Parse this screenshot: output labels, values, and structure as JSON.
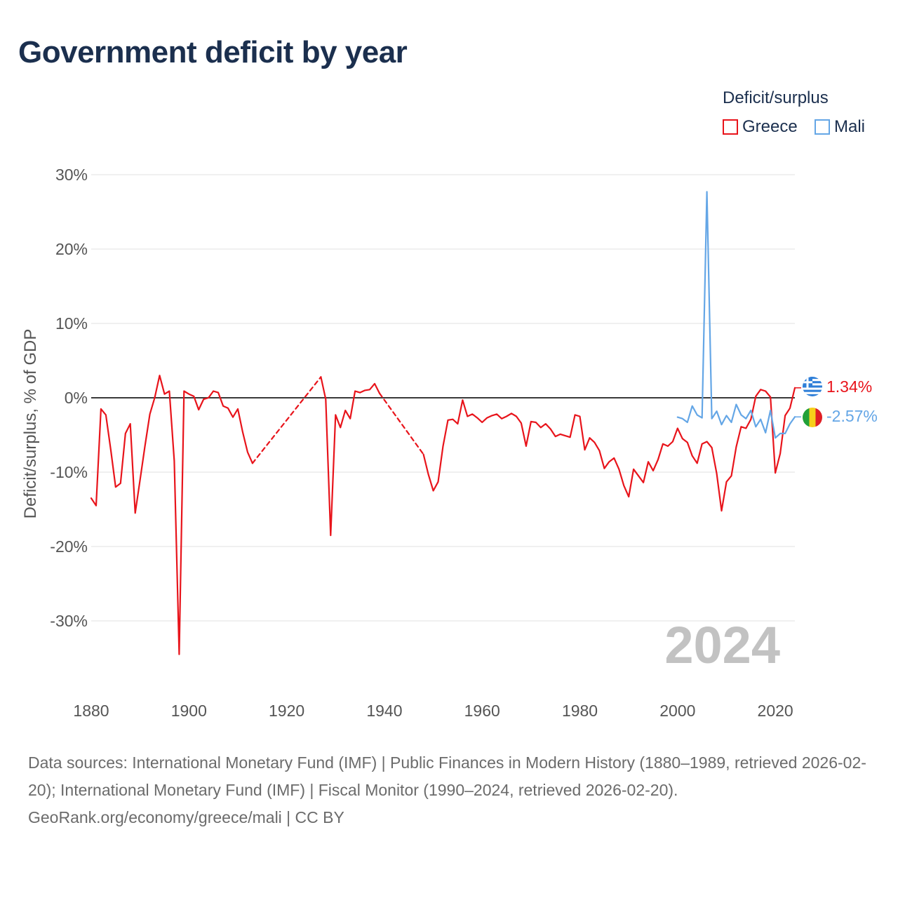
{
  "title": "Government deficit by year",
  "legend": {
    "title": "Deficit/surplus",
    "items": [
      {
        "name": "Greece",
        "color": "#e8141b"
      },
      {
        "name": "Mali",
        "color": "#64a6e6"
      }
    ]
  },
  "footer": {
    "sources": "Data sources: International Monetary Fund (IMF) | Public Finances in Modern History (1880–1989, retrieved 2026-02-20); International Monetary Fund (IMF) | Fiscal Monitor (1990–2024, retrieved 2026-02-20).",
    "credit": "GeoRank.org/economy/greece/mali | CC BY"
  },
  "chart_data": {
    "type": "line",
    "title": "Government deficit by year",
    "ylabel": "Deficit/surplus, % of GDP",
    "xlabel": "",
    "xlim": [
      1880,
      2024
    ],
    "ylim": [
      -37,
      30
    ],
    "x_ticks": [
      "1880",
      "1900",
      "1920",
      "1940",
      "1960",
      "1980",
      "2000",
      "2020"
    ],
    "x_tick_values": [
      1880,
      1900,
      1920,
      1940,
      1960,
      1980,
      2000,
      2020
    ],
    "y_ticks": [
      "30%",
      "20%",
      "10%",
      "0%",
      "-10%",
      "-20%",
      "-30%"
    ],
    "y_tick_values": [
      30,
      20,
      10,
      0,
      -10,
      -20,
      -30
    ],
    "watermark_year": "2024",
    "series": [
      {
        "name": "Greece",
        "color": "#e8141b",
        "end_label": "1.34%",
        "flag": "greece-flag-icon",
        "segments": [
          {
            "style": "solid",
            "points": [
              [
                1880,
                -13.5
              ],
              [
                1881,
                -14.5
              ],
              [
                1882,
                -1.5
              ],
              [
                1883,
                -2.3
              ],
              [
                1884,
                -7
              ],
              [
                1885,
                -12
              ],
              [
                1886,
                -11.5
              ],
              [
                1887,
                -4.8
              ],
              [
                1888,
                -3.5
              ],
              [
                1889,
                -15.5
              ],
              [
                1890,
                -11
              ],
              [
                1891,
                -6.5
              ],
              [
                1892,
                -2.2
              ],
              [
                1893,
                0
              ],
              [
                1894,
                3
              ],
              [
                1895,
                0.5
              ],
              [
                1896,
                0.9
              ],
              [
                1897,
                -8.5
              ],
              [
                1898,
                -34.5
              ],
              [
                1899,
                0.9
              ],
              [
                1900,
                0.5
              ],
              [
                1901,
                0.2
              ],
              [
                1902,
                -1.6
              ],
              [
                1903,
                -0.2
              ],
              [
                1904,
                0
              ],
              [
                1905,
                0.9
              ],
              [
                1906,
                0.7
              ],
              [
                1907,
                -1.1
              ],
              [
                1908,
                -1.4
              ],
              [
                1909,
                -2.6
              ],
              [
                1910,
                -1.5
              ],
              [
                1911,
                -4.6
              ],
              [
                1912,
                -7.3
              ],
              [
                1913,
                -8.8
              ]
            ]
          },
          {
            "style": "dashed",
            "points": [
              [
                1913,
                -8.8
              ],
              [
                1927,
                2.8
              ]
            ]
          },
          {
            "style": "solid",
            "points": [
              [
                1927,
                2.8
              ],
              [
                1928,
                -0.2
              ],
              [
                1929,
                -18.5
              ],
              [
                1930,
                -2.3
              ],
              [
                1931,
                -4
              ],
              [
                1932,
                -1.7
              ],
              [
                1933,
                -2.8
              ],
              [
                1934,
                0.9
              ],
              [
                1935,
                0.7
              ],
              [
                1936,
                1
              ],
              [
                1937,
                1.1
              ],
              [
                1938,
                1.9
              ],
              [
                1939,
                0.6
              ]
            ]
          },
          {
            "style": "dashed",
            "points": [
              [
                1939,
                0.6
              ],
              [
                1948,
                -7.6
              ]
            ]
          },
          {
            "style": "solid",
            "points": [
              [
                1948,
                -7.6
              ],
              [
                1949,
                -10.3
              ],
              [
                1950,
                -12.5
              ],
              [
                1951,
                -11.3
              ],
              [
                1952,
                -6.5
              ],
              [
                1953,
                -3
              ],
              [
                1954,
                -2.9
              ],
              [
                1955,
                -3.5
              ],
              [
                1956,
                -0.3
              ],
              [
                1957,
                -2.5
              ],
              [
                1958,
                -2.2
              ],
              [
                1959,
                -2.7
              ],
              [
                1960,
                -3.3
              ],
              [
                1961,
                -2.7
              ],
              [
                1962,
                -2.4
              ],
              [
                1963,
                -2.2
              ],
              [
                1964,
                -2.8
              ],
              [
                1965,
                -2.5
              ],
              [
                1966,
                -2.1
              ],
              [
                1967,
                -2.5
              ],
              [
                1968,
                -3.4
              ],
              [
                1969,
                -6.5
              ],
              [
                1970,
                -3.2
              ],
              [
                1971,
                -3.3
              ],
              [
                1972,
                -4
              ],
              [
                1973,
                -3.5
              ],
              [
                1974,
                -4.2
              ],
              [
                1975,
                -5.2
              ],
              [
                1976,
                -4.9
              ],
              [
                1977,
                -5.1
              ],
              [
                1978,
                -5.3
              ],
              [
                1979,
                -2.3
              ],
              [
                1980,
                -2.5
              ],
              [
                1981,
                -7
              ],
              [
                1982,
                -5.4
              ],
              [
                1983,
                -6
              ],
              [
                1984,
                -7.1
              ],
              [
                1985,
                -9.5
              ],
              [
                1986,
                -8.6
              ],
              [
                1987,
                -8.1
              ],
              [
                1988,
                -9.6
              ],
              [
                1989,
                -11.8
              ],
              [
                1990,
                -13.3
              ],
              [
                1991,
                -9.6
              ],
              [
                1992,
                -10.5
              ],
              [
                1993,
                -11.4
              ],
              [
                1994,
                -8.6
              ],
              [
                1995,
                -9.8
              ],
              [
                1996,
                -8.3
              ],
              [
                1997,
                -6.2
              ],
              [
                1998,
                -6.5
              ],
              [
                1999,
                -5.9
              ],
              [
                2000,
                -4.1
              ],
              [
                2001,
                -5.5
              ],
              [
                2002,
                -6
              ],
              [
                2003,
                -7.8
              ],
              [
                2004,
                -8.8
              ],
              [
                2005,
                -6.2
              ],
              [
                2006,
                -5.9
              ],
              [
                2007,
                -6.7
              ],
              [
                2008,
                -10.2
              ],
              [
                2009,
                -15.2
              ],
              [
                2010,
                -11.3
              ],
              [
                2011,
                -10.5
              ],
              [
                2012,
                -6.6
              ],
              [
                2013,
                -3.9
              ],
              [
                2014,
                -4.1
              ],
              [
                2015,
                -2.9
              ],
              [
                2016,
                0.2
              ],
              [
                2017,
                1.1
              ],
              [
                2018,
                0.9
              ],
              [
                2019,
                0.1
              ],
              [
                2020,
                -10.1
              ],
              [
                2021,
                -7.5
              ],
              [
                2022,
                -2.4
              ],
              [
                2023,
                -1.4
              ],
              [
                2024,
                1.34
              ]
            ]
          }
        ]
      },
      {
        "name": "Mali",
        "color": "#64a6e6",
        "end_label": "-2.57%",
        "flag": "mali-flag-icon",
        "segments": [
          {
            "style": "solid",
            "points": [
              [
                2000,
                -2.6
              ],
              [
                2001,
                -2.8
              ],
              [
                2002,
                -3.3
              ],
              [
                2003,
                -1.1
              ],
              [
                2004,
                -2.3
              ],
              [
                2005,
                -2.7
              ],
              [
                2006,
                27.7
              ],
              [
                2007,
                -2.8
              ],
              [
                2008,
                -1.8
              ],
              [
                2009,
                -3.6
              ],
              [
                2010,
                -2.4
              ],
              [
                2011,
                -3.3
              ],
              [
                2012,
                -0.9
              ],
              [
                2013,
                -2.3
              ],
              [
                2014,
                -2.8
              ],
              [
                2015,
                -1.7
              ],
              [
                2016,
                -3.9
              ],
              [
                2017,
                -2.9
              ],
              [
                2018,
                -4.7
              ],
              [
                2019,
                -1.7
              ],
              [
                2020,
                -5.4
              ],
              [
                2021,
                -4.8
              ],
              [
                2022,
                -4.8
              ],
              [
                2023,
                -3.5
              ],
              [
                2024,
                -2.57
              ]
            ]
          }
        ]
      }
    ]
  }
}
